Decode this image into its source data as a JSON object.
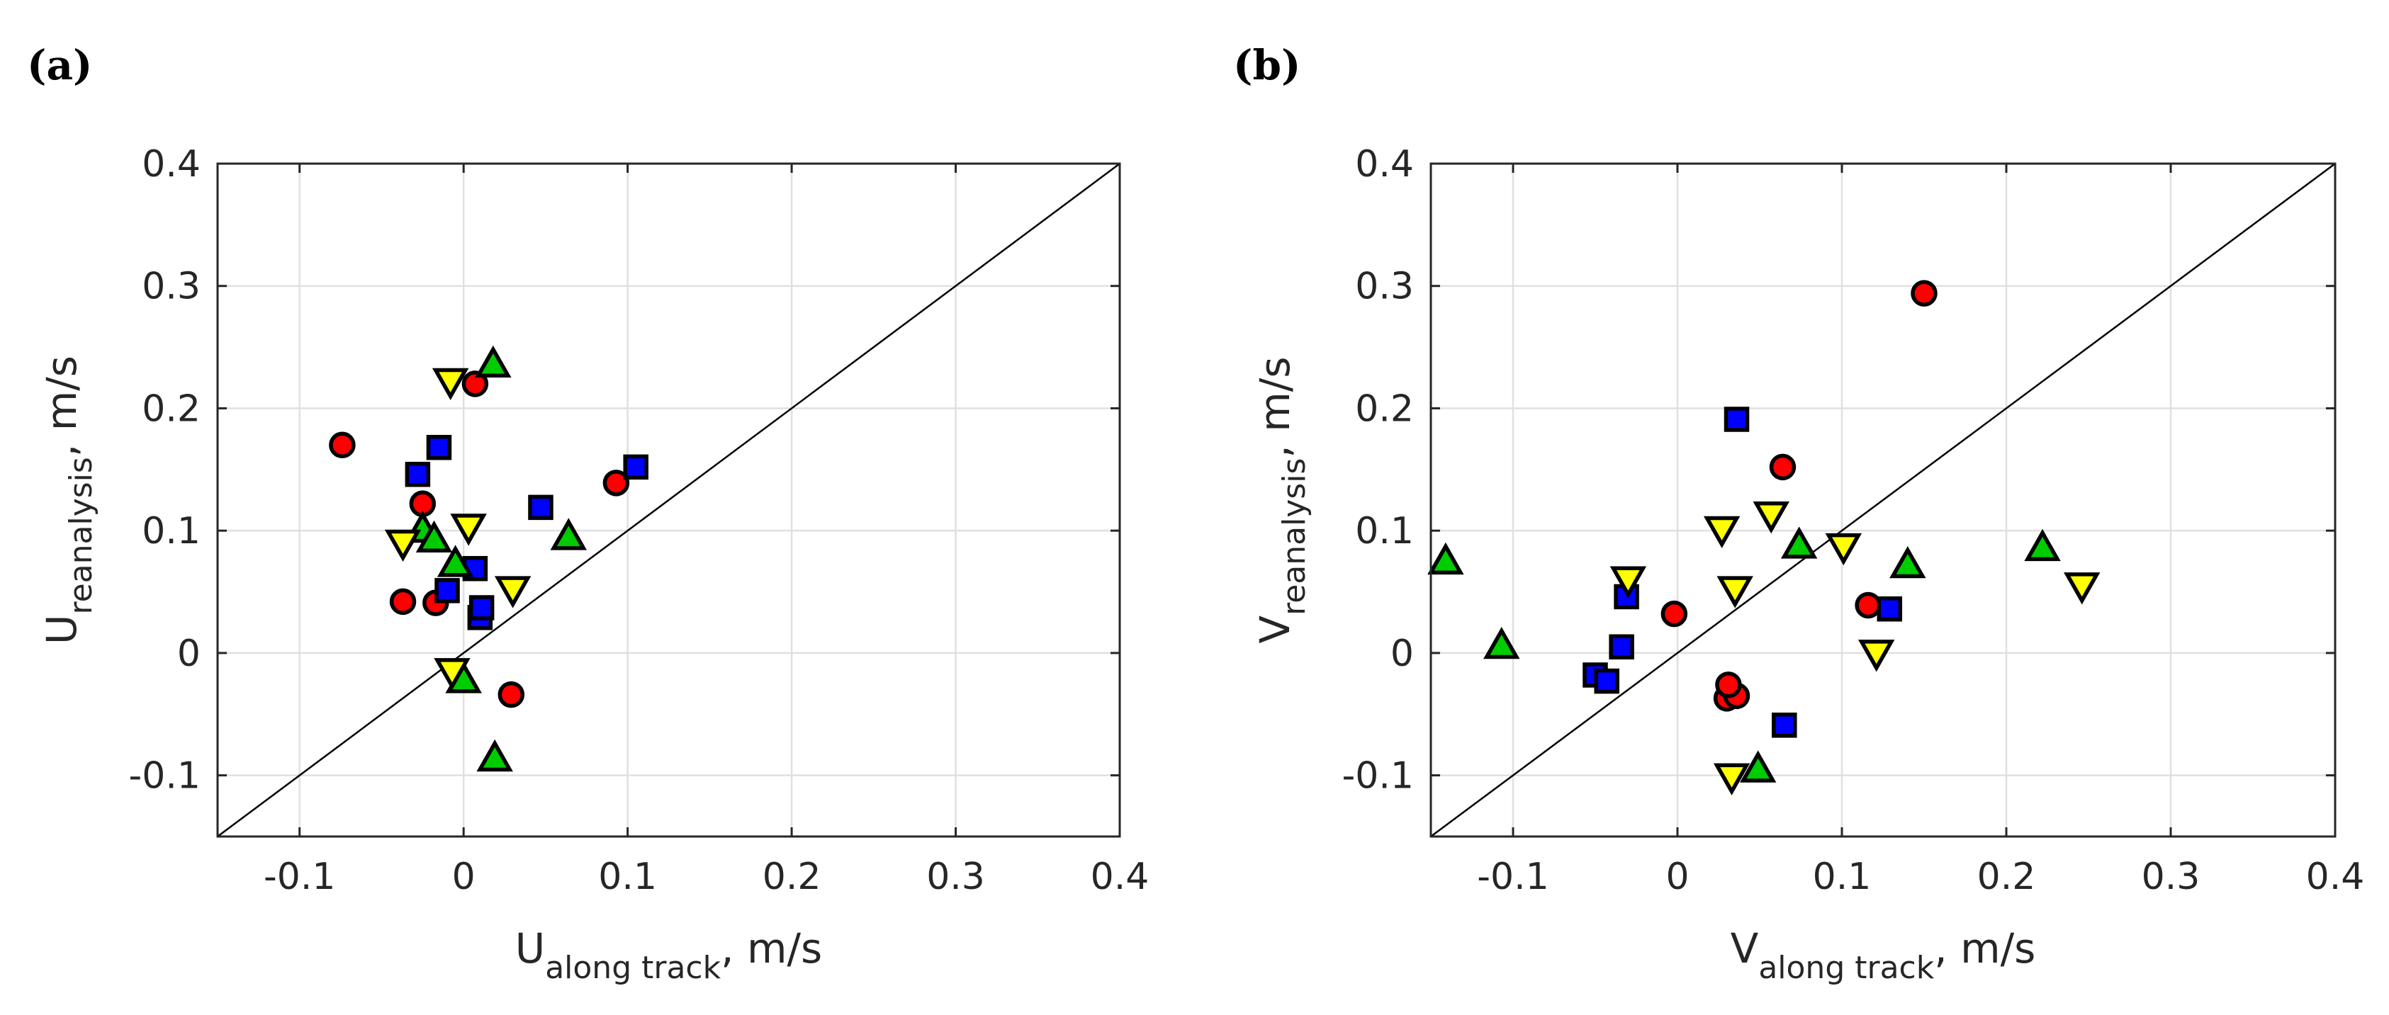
{
  "colors": {
    "circle": "#ff0000",
    "square": "#0000ff",
    "triangle_up": "#00cc00",
    "triangle_down": "#ffff00",
    "grid": "#e0e0e0",
    "axis": "#262626"
  },
  "chart_data": [
    {
      "type": "scatter",
      "panel_label": "(a)",
      "xlim": [
        -0.15,
        0.4
      ],
      "ylim": [
        -0.15,
        0.4
      ],
      "xticks": [
        -0.1,
        0,
        0.1,
        0.2,
        0.3,
        0.4
      ],
      "yticks": [
        -0.1,
        0,
        0.1,
        0.2,
        0.3,
        0.4
      ],
      "xtick_labels": [
        "-0.1",
        "0",
        "0.1",
        "0.2",
        "0.3",
        "0.4"
      ],
      "ytick_labels": [
        "-0.1",
        "0",
        "0.1",
        "0.2",
        "0.3",
        "0.4"
      ],
      "xlabel": {
        "main": "U",
        "sub": "along track",
        "suffix": ", m/s"
      },
      "ylabel": {
        "main": "U",
        "sub": "reanalysis",
        "suffix": ", m/s"
      },
      "grid": true,
      "reference_line": "y = x",
      "series": [
        {
          "name": "circle",
          "marker": "circle",
          "points": [
            [
              -0.074,
              0.17
            ],
            [
              -0.025,
              0.122
            ],
            [
              -0.037,
              0.042
            ],
            [
              -0.017,
              0.041
            ],
            [
              0.007,
              0.22
            ],
            [
              0.093,
              0.139
            ],
            [
              0.029,
              -0.034
            ]
          ]
        },
        {
          "name": "square",
          "marker": "square",
          "points": [
            [
              -0.028,
              0.146
            ],
            [
              -0.015,
              0.168
            ],
            [
              -0.01,
              0.051
            ],
            [
              0.007,
              0.069
            ],
            [
              0.01,
              0.029
            ],
            [
              0.011,
              0.037
            ],
            [
              0.047,
              0.119
            ],
            [
              0.105,
              0.152
            ]
          ]
        },
        {
          "name": "triangle-up",
          "marker": "triangle-up",
          "points": [
            [
              -0.025,
              0.101
            ],
            [
              -0.018,
              0.093
            ],
            [
              -0.005,
              0.073
            ],
            [
              0.0,
              -0.022
            ],
            [
              0.019,
              -0.086
            ],
            [
              0.018,
              0.236
            ],
            [
              0.064,
              0.095
            ]
          ]
        },
        {
          "name": "triangle-down",
          "marker": "triangle-down",
          "points": [
            [
              -0.037,
              0.09
            ],
            [
              -0.008,
              0.222
            ],
            [
              0.003,
              0.103
            ],
            [
              -0.007,
              -0.015
            ],
            [
              0.03,
              0.052
            ]
          ]
        }
      ]
    },
    {
      "type": "scatter",
      "panel_label": "(b)",
      "xlim": [
        -0.15,
        0.4
      ],
      "ylim": [
        -0.15,
        0.4
      ],
      "xticks": [
        -0.1,
        0,
        0.1,
        0.2,
        0.3,
        0.4
      ],
      "yticks": [
        -0.1,
        0,
        0.1,
        0.2,
        0.3,
        0.4
      ],
      "xtick_labels": [
        "-0.1",
        "0",
        "0.1",
        "0.2",
        "0.3",
        "0.4"
      ],
      "ytick_labels": [
        "-0.1",
        "0",
        "0.1",
        "0.2",
        "0.3",
        "0.4"
      ],
      "xlabel": {
        "main": "V",
        "sub": "along track",
        "suffix": ", m/s"
      },
      "ylabel": {
        "main": "V",
        "sub": "reanalysis",
        "suffix": ", m/s"
      },
      "grid": true,
      "reference_line": "y = x",
      "series": [
        {
          "name": "circle",
          "marker": "circle",
          "points": [
            [
              -0.002,
              0.032
            ],
            [
              0.03,
              -0.037
            ],
            [
              0.036,
              -0.035
            ],
            [
              0.031,
              -0.026
            ],
            [
              0.064,
              0.152
            ],
            [
              0.116,
              0.039
            ],
            [
              0.15,
              0.294
            ]
          ]
        },
        {
          "name": "square",
          "marker": "square",
          "points": [
            [
              -0.05,
              -0.018
            ],
            [
              -0.043,
              -0.023
            ],
            [
              -0.034,
              0.005
            ],
            [
              -0.031,
              0.046
            ],
            [
              0.036,
              0.191
            ],
            [
              0.065,
              -0.059
            ],
            [
              0.129,
              0.036
            ]
          ]
        },
        {
          "name": "triangle-up",
          "marker": "triangle-up",
          "points": [
            [
              -0.141,
              0.075
            ],
            [
              -0.107,
              0.006
            ],
            [
              0.049,
              -0.095
            ],
            [
              0.074,
              0.088
            ],
            [
              0.14,
              0.072
            ],
            [
              0.222,
              0.086
            ]
          ]
        },
        {
          "name": "triangle-down",
          "marker": "triangle-down",
          "points": [
            [
              -0.03,
              0.06
            ],
            [
              0.027,
              0.101
            ],
            [
              0.035,
              0.052
            ],
            [
              0.057,
              0.113
            ],
            [
              0.033,
              -0.101
            ],
            [
              0.101,
              0.087
            ],
            [
              0.121,
              0.0
            ],
            [
              0.246,
              0.055
            ]
          ]
        }
      ]
    }
  ]
}
